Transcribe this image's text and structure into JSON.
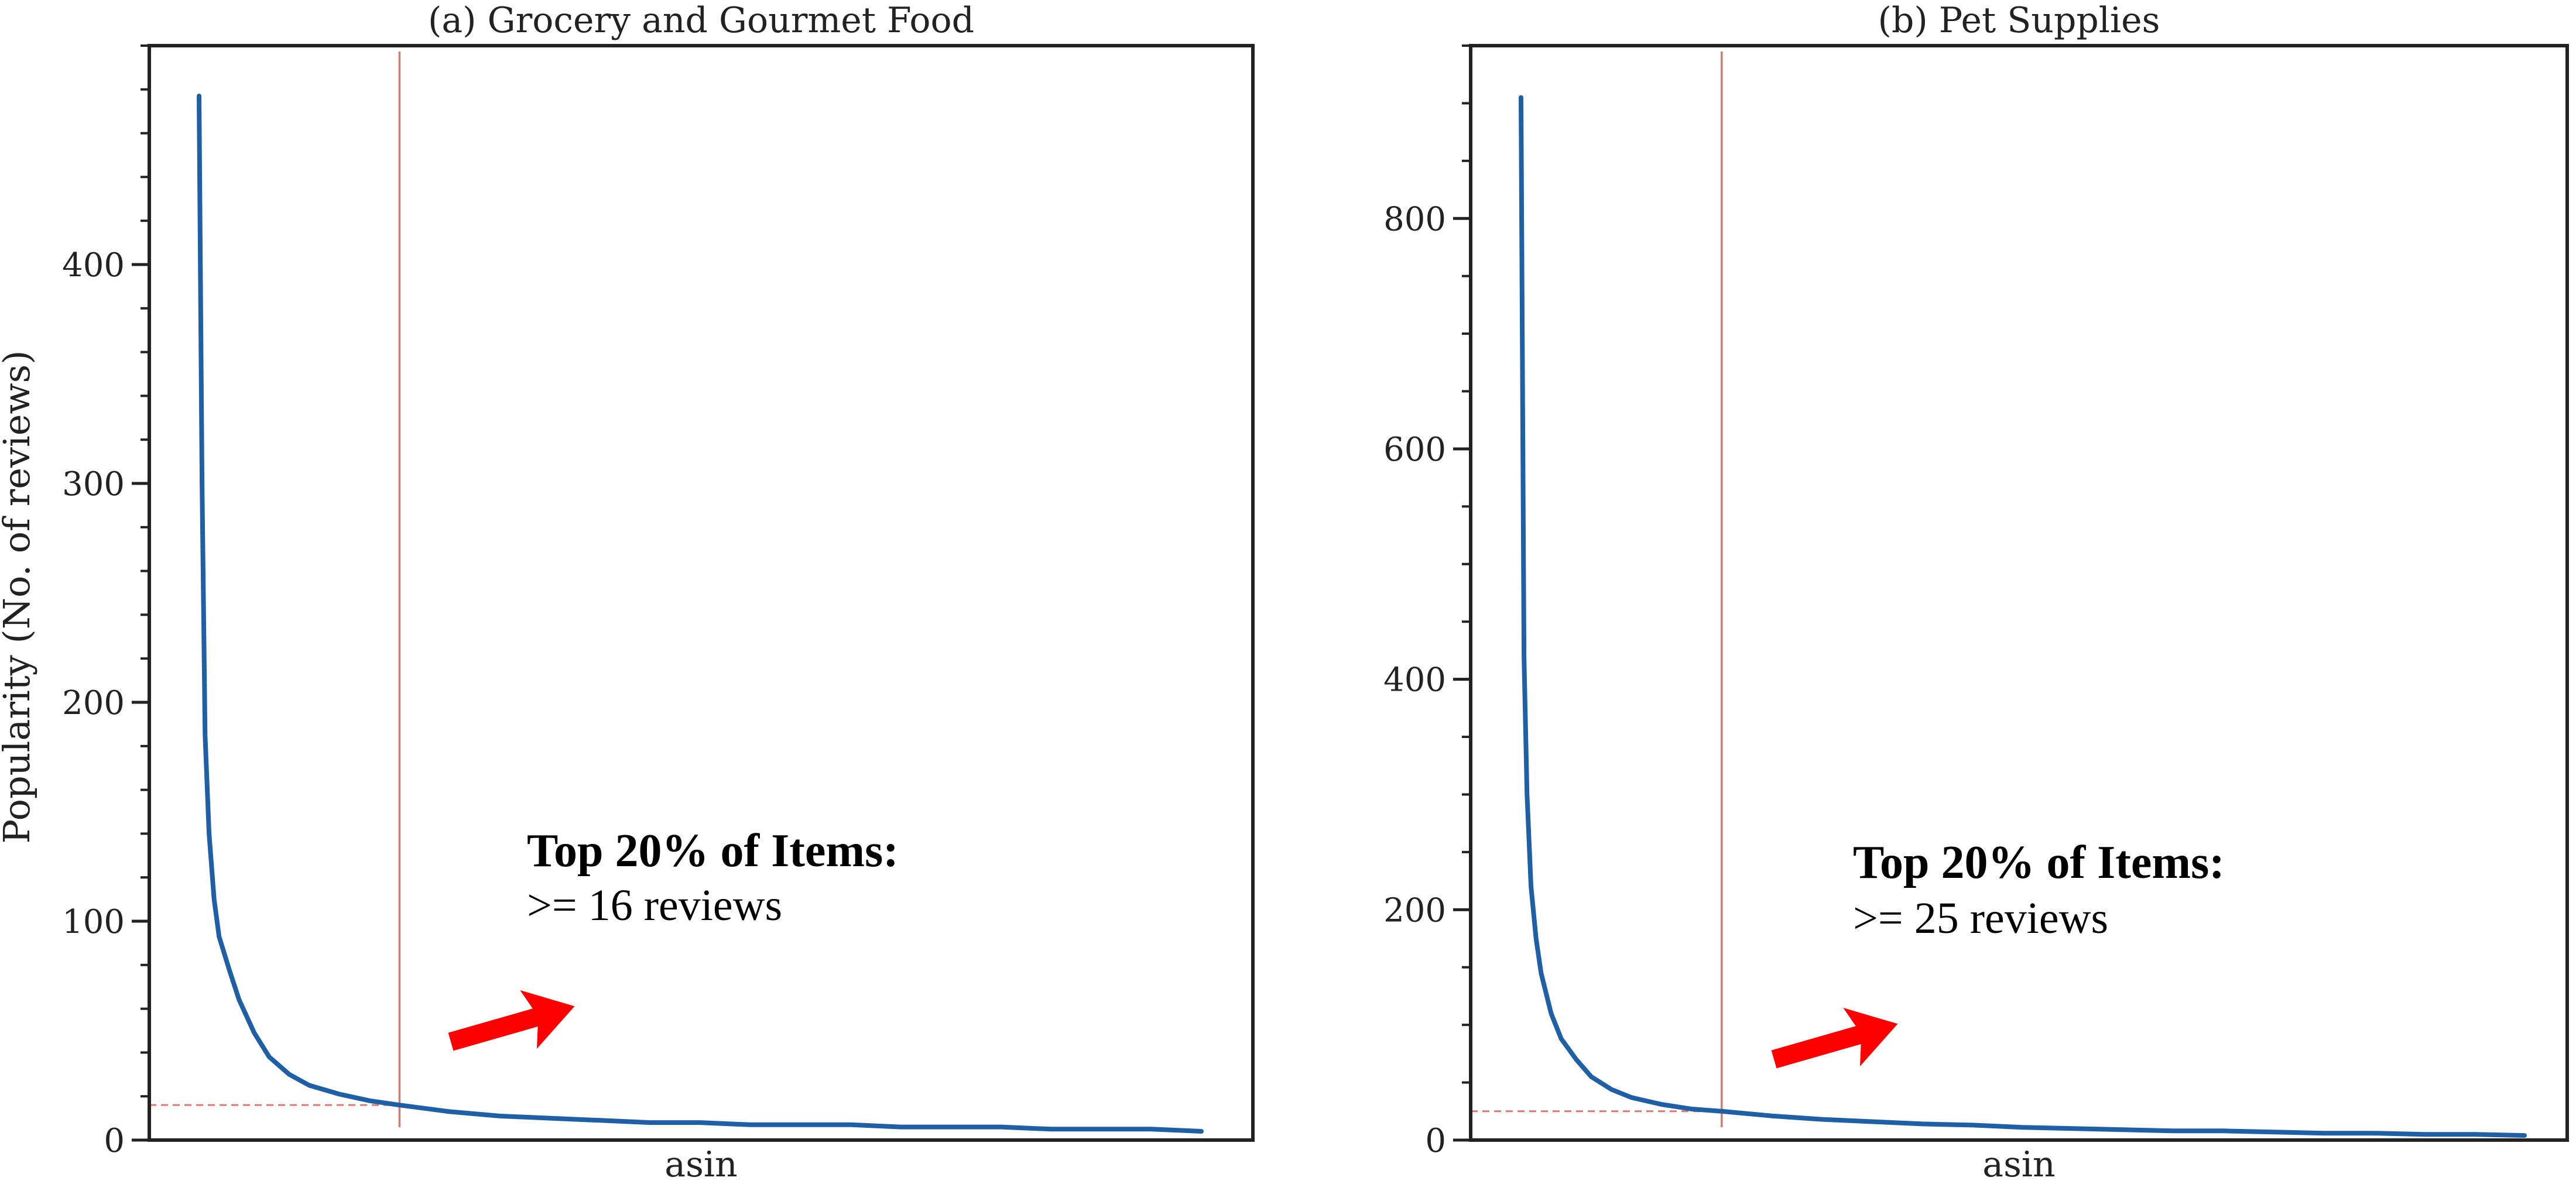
{
  "ylabel": "Popularity (No. of reviews)",
  "colors": {
    "curve": "#1f5fa6",
    "threshold": "#d77a74",
    "arrow": "#ff0000",
    "axes": "#222222"
  },
  "chart_data": [
    {
      "type": "line",
      "title": "(a) Grocery and Gourmet Food",
      "xlabel": "asin",
      "ylim": [
        0,
        500
      ],
      "yticks": [
        0,
        100,
        200,
        300,
        400
      ],
      "yminor_step": 20,
      "grid": false,
      "x_rank_fraction": [
        0.0,
        0.003,
        0.006,
        0.01,
        0.015,
        0.02,
        0.03,
        0.04,
        0.055,
        0.07,
        0.09,
        0.11,
        0.14,
        0.17,
        0.2,
        0.25,
        0.3,
        0.35,
        0.4,
        0.45,
        0.5,
        0.55,
        0.6,
        0.65,
        0.7,
        0.75,
        0.8,
        0.85,
        0.9,
        0.95,
        1.0
      ],
      "values": [
        477,
        300,
        185,
        140,
        110,
        93,
        78,
        64,
        49,
        38,
        30,
        25,
        21,
        18,
        16,
        13,
        11,
        10,
        9,
        8,
        8,
        7,
        7,
        7,
        6,
        6,
        6,
        5,
        5,
        5,
        4
      ],
      "threshold": {
        "x_rank_fraction": 0.2,
        "value": 16
      },
      "annotation": {
        "title": "Top 20% of Items:",
        "text": ">= 16 reviews"
      }
    },
    {
      "type": "line",
      "title": "(b) Pet Supplies",
      "xlabel": "asin",
      "ylim": [
        0,
        950
      ],
      "yticks": [
        0,
        200,
        400,
        600,
        800
      ],
      "yminor_step": 50,
      "grid": false,
      "x_rank_fraction": [
        0.0,
        0.003,
        0.006,
        0.01,
        0.015,
        0.02,
        0.03,
        0.04,
        0.055,
        0.07,
        0.09,
        0.11,
        0.14,
        0.17,
        0.2,
        0.25,
        0.3,
        0.35,
        0.4,
        0.45,
        0.5,
        0.55,
        0.6,
        0.65,
        0.7,
        0.75,
        0.8,
        0.85,
        0.9,
        0.95,
        1.0
      ],
      "values": [
        905,
        420,
        300,
        220,
        175,
        145,
        110,
        88,
        70,
        55,
        44,
        37,
        31,
        27,
        25,
        21,
        18,
        16,
        14,
        13,
        11,
        10,
        9,
        8,
        8,
        7,
        6,
        6,
        5,
        5,
        4
      ],
      "threshold": {
        "x_rank_fraction": 0.2,
        "value": 25
      },
      "annotation": {
        "title": "Top 20% of Items:",
        "text": ">= 25 reviews"
      }
    }
  ]
}
